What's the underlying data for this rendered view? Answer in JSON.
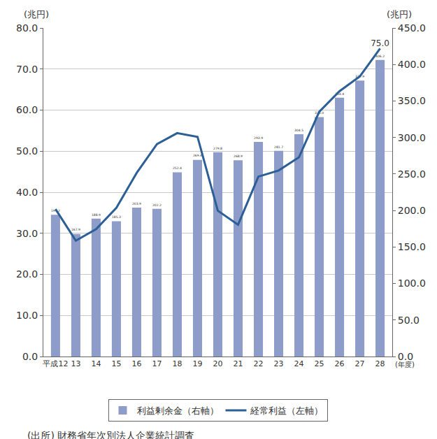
{
  "chart_data": {
    "type": "bar",
    "categories": [
      "平成12",
      "13",
      "14",
      "15",
      "16",
      "17",
      "18",
      "19",
      "20",
      "21",
      "22",
      "23",
      "24",
      "25",
      "26",
      "27",
      "28"
    ],
    "xlabel": "(年度)",
    "ylabel": "(兆円)",
    "y2label": "(兆円)",
    "note": "(出所) 財務省年次別法人企業統計調査",
    "series": [
      {
        "name": "利益剰余金（右軸）",
        "type": "bar",
        "axis": "y2",
        "color": "#8e9cca",
        "values": [
          194.2,
          167.9,
          188.9,
          185.3,
          203.9,
          202.2,
          252.4,
          269.4,
          279.8,
          268.9,
          293.9,
          281.7,
          304.5,
          328.0,
          354.4,
          377.9,
          406.2
        ],
        "value_labels": [
          "194.2",
          "167.9",
          "188.9",
          "185.3",
          "203.9",
          "202.2",
          "252.4",
          "269.4",
          "279.8",
          "268.9",
          "293.9",
          "281.7",
          "304.5",
          "328.0",
          "354.4",
          "377.9",
          "406.2"
        ]
      },
      {
        "name": "経常利益（左軸）",
        "type": "line",
        "color": "#2d5f97",
        "values": [
          35.9,
          28.2,
          31.0,
          36.2,
          44.7,
          51.7,
          54.4,
          53.5,
          35.5,
          32.1,
          43.8,
          45.3,
          48.5,
          59.6,
          64.6,
          68.2,
          75.0
        ],
        "value_labels": [
          null,
          null,
          null,
          null,
          null,
          null,
          null,
          null,
          null,
          null,
          null,
          null,
          null,
          null,
          null,
          null,
          "75.0"
        ]
      }
    ],
    "data_labels": true,
    "ylim": [
      0,
      80
    ],
    "yticks": [
      {
        "value": 0,
        "label": "0.0"
      },
      {
        "value": 10,
        "label": "10.0"
      },
      {
        "value": 20,
        "label": "20.0"
      },
      {
        "value": 30,
        "label": "30.0"
      },
      {
        "value": 40,
        "label": "40.0"
      },
      {
        "value": 50,
        "label": "50.0"
      },
      {
        "value": 60,
        "label": "60.0"
      },
      {
        "value": 70,
        "label": "70.0"
      },
      {
        "value": 80,
        "label": "80.0"
      }
    ],
    "y2lim": [
      0,
      450
    ],
    "y2ticks": [
      {
        "value": 0,
        "label": "0.0"
      },
      {
        "value": 50,
        "label": "50.0"
      },
      {
        "value": 100,
        "label": "100.0"
      },
      {
        "value": 150,
        "label": "150.0"
      },
      {
        "value": 200,
        "label": "200.0"
      },
      {
        "value": 250,
        "label": "250.0"
      },
      {
        "value": 300,
        "label": "300.0"
      },
      {
        "value": 350,
        "label": "350.0"
      },
      {
        "value": 400,
        "label": "400.0"
      },
      {
        "value": 450,
        "label": "450.0"
      }
    ],
    "grid": true,
    "legend": "bottom"
  }
}
